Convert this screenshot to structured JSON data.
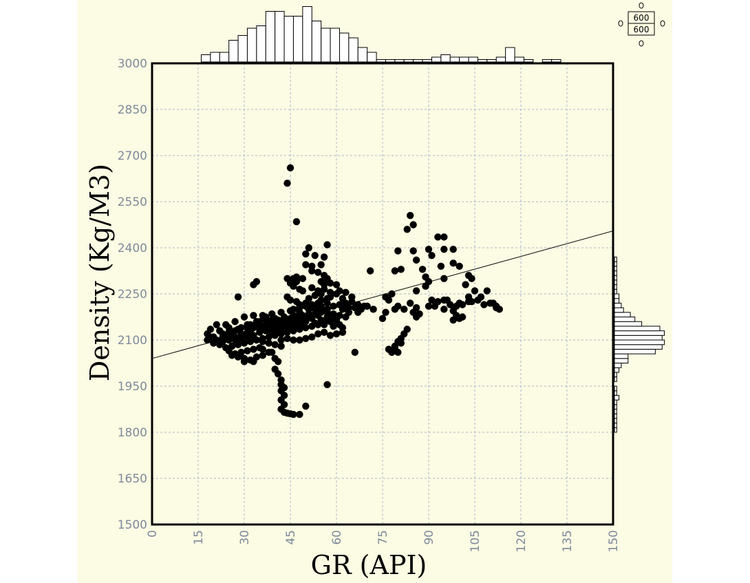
{
  "chart_data": {
    "type": "scatter",
    "title": "",
    "xlabel": "GR (API)",
    "ylabel": "Density (Kg/M3)",
    "xlim": [
      0,
      150
    ],
    "ylim": [
      1500,
      3000
    ],
    "x_ticks": [
      0,
      15,
      30,
      45,
      60,
      75,
      90,
      105,
      120,
      135,
      150
    ],
    "y_ticks": [
      1500,
      1650,
      1800,
      1950,
      2100,
      2250,
      2400,
      2550,
      2700,
      2850,
      3000
    ],
    "grid": true,
    "regression_line": {
      "x": [
        0,
        150
      ],
      "y": [
        2040,
        2455
      ]
    },
    "x_histogram": {
      "bins_start": 16,
      "bin_width": 3,
      "counts": [
        3,
        4,
        4,
        9,
        11,
        14,
        15,
        21,
        21,
        19,
        19,
        23,
        17,
        14,
        14,
        12,
        10,
        6,
        4,
        1,
        1,
        1,
        1,
        1,
        1,
        2,
        3,
        2,
        2,
        2,
        1,
        1,
        2,
        6,
        2,
        1,
        0,
        1,
        1
      ]
    },
    "y_histogram": {
      "bins_start": 1800,
      "bin_width": 15,
      "counts": [
        1,
        1,
        1,
        1,
        1,
        1,
        1,
        2,
        1,
        1,
        0,
        1,
        1,
        2,
        3,
        6,
        6,
        18,
        21,
        22,
        21,
        22,
        20,
        12,
        9,
        7,
        4,
        3,
        2,
        2,
        1,
        1,
        1,
        1,
        1,
        1,
        1,
        1
      ]
    },
    "scale_box": {
      "top": "600",
      "bottom": "600"
    },
    "points": [
      [
        45,
        2660
      ],
      [
        44,
        2610
      ],
      [
        47,
        2485
      ],
      [
        84,
        2505
      ],
      [
        85,
        2475
      ],
      [
        83,
        2460
      ],
      [
        93,
        2435
      ],
      [
        95,
        2435
      ],
      [
        95,
        2395
      ],
      [
        90,
        2395
      ],
      [
        91,
        2375
      ],
      [
        98,
        2395
      ],
      [
        80,
        2390
      ],
      [
        85,
        2390
      ],
      [
        86,
        2360
      ],
      [
        94,
        2340
      ],
      [
        100,
        2340
      ],
      [
        98,
        2350
      ],
      [
        57,
        2410
      ],
      [
        51,
        2400
      ],
      [
        50,
        2380
      ],
      [
        53,
        2375
      ],
      [
        56,
        2370
      ],
      [
        55,
        2345
      ],
      [
        52,
        2340
      ],
      [
        50,
        2345
      ],
      [
        52,
        2325
      ],
      [
        54,
        2320
      ],
      [
        56,
        2310
      ],
      [
        57,
        2300
      ],
      [
        55,
        2290
      ],
      [
        58,
        2285
      ],
      [
        60,
        2280
      ],
      [
        56,
        2280
      ],
      [
        46,
        2300
      ],
      [
        44,
        2300
      ],
      [
        47,
        2305
      ],
      [
        49,
        2300
      ],
      [
        47,
        2290
      ],
      [
        45,
        2285
      ],
      [
        46,
        2275
      ],
      [
        48,
        2265
      ],
      [
        33,
        2280
      ],
      [
        34,
        2290
      ],
      [
        28,
        2240
      ],
      [
        71,
        2325
      ],
      [
        79,
        2325
      ],
      [
        81,
        2330
      ],
      [
        88,
        2330
      ],
      [
        89,
        2305
      ],
      [
        90,
        2290
      ],
      [
        95,
        2300
      ],
      [
        103,
        2310
      ],
      [
        104,
        2300
      ],
      [
        102,
        2280
      ],
      [
        105,
        2260
      ],
      [
        103,
        2240
      ],
      [
        104,
        2225
      ],
      [
        101,
        2215
      ],
      [
        99,
        2210
      ],
      [
        100,
        2220
      ],
      [
        96,
        2230
      ],
      [
        97,
        2215
      ],
      [
        95,
        2200
      ],
      [
        98,
        2195
      ],
      [
        99,
        2180
      ],
      [
        100,
        2170
      ],
      [
        98,
        2165
      ],
      [
        101,
        2175
      ],
      [
        103,
        2225
      ],
      [
        106,
        2230
      ],
      [
        107,
        2240
      ],
      [
        109,
        2260
      ],
      [
        110,
        2220
      ],
      [
        111,
        2220
      ],
      [
        108,
        2215
      ],
      [
        112,
        2210
      ],
      [
        112,
        2205
      ],
      [
        113,
        2200
      ],
      [
        86,
        2260
      ],
      [
        89,
        2275
      ],
      [
        91,
        2230
      ],
      [
        93,
        2225
      ],
      [
        95,
        2230
      ],
      [
        92,
        2210
      ],
      [
        90,
        2210
      ],
      [
        86,
        2205
      ],
      [
        85,
        2190
      ],
      [
        87,
        2185
      ],
      [
        86,
        2175
      ],
      [
        84,
        2220
      ],
      [
        82,
        2200
      ],
      [
        80,
        2210
      ],
      [
        78,
        2250
      ],
      [
        76,
        2240
      ],
      [
        77,
        2230
      ],
      [
        79,
        2200
      ],
      [
        76,
        2190
      ],
      [
        75,
        2170
      ],
      [
        72,
        2200
      ],
      [
        70,
        2210
      ],
      [
        68,
        2200
      ],
      [
        66,
        2205
      ],
      [
        67,
        2190
      ],
      [
        64,
        2190
      ],
      [
        65,
        2240
      ],
      [
        63,
        2255
      ],
      [
        61,
        2260
      ],
      [
        58,
        2255
      ],
      [
        60,
        2250
      ],
      [
        62,
        2235
      ],
      [
        57,
        2235
      ],
      [
        55,
        2230
      ],
      [
        54,
        2220
      ],
      [
        52,
        2215
      ],
      [
        50,
        2210
      ],
      [
        48,
        2205
      ],
      [
        46,
        2200
      ],
      [
        53,
        2200
      ],
      [
        55,
        2195
      ],
      [
        57,
        2190
      ],
      [
        59,
        2185
      ],
      [
        61,
        2180
      ],
      [
        63,
        2175
      ],
      [
        60,
        2170
      ],
      [
        58,
        2165
      ],
      [
        56,
        2160
      ],
      [
        54,
        2150
      ],
      [
        52,
        2145
      ],
      [
        50,
        2140
      ],
      [
        48,
        2135
      ],
      [
        46,
        2130
      ],
      [
        44,
        2125
      ],
      [
        42,
        2120
      ],
      [
        40,
        2115
      ],
      [
        38,
        2110
      ],
      [
        36,
        2105
      ],
      [
        34,
        2100
      ],
      [
        32,
        2095
      ],
      [
        30,
        2090
      ],
      [
        28,
        2085
      ],
      [
        26,
        2080
      ],
      [
        24,
        2075
      ],
      [
        22,
        2085
      ],
      [
        20,
        2090
      ],
      [
        18,
        2100
      ],
      [
        18,
        2120
      ],
      [
        19,
        2135
      ],
      [
        20,
        2110
      ],
      [
        21,
        2150
      ],
      [
        22,
        2130
      ],
      [
        23,
        2120
      ],
      [
        24,
        2150
      ],
      [
        25,
        2140
      ],
      [
        26,
        2115
      ],
      [
        27,
        2160
      ],
      [
        28,
        2135
      ],
      [
        29,
        2120
      ],
      [
        30,
        2175
      ],
      [
        31,
        2150
      ],
      [
        32,
        2130
      ],
      [
        33,
        2180
      ],
      [
        34,
        2160
      ],
      [
        35,
        2140
      ],
      [
        36,
        2180
      ],
      [
        37,
        2165
      ],
      [
        38,
        2150
      ],
      [
        39,
        2185
      ],
      [
        40,
        2170
      ],
      [
        41,
        2155
      ],
      [
        42,
        2190
      ],
      [
        43,
        2175
      ],
      [
        44,
        2160
      ],
      [
        45,
        2195
      ],
      [
        46,
        2180
      ],
      [
        47,
        2165
      ],
      [
        48,
        2190
      ],
      [
        49,
        2175
      ],
      [
        50,
        2160
      ],
      [
        51,
        2185
      ],
      [
        52,
        2170
      ],
      [
        53,
        2155
      ],
      [
        54,
        2180
      ],
      [
        55,
        2165
      ],
      [
        56,
        2150
      ],
      [
        57,
        2175
      ],
      [
        58,
        2160
      ],
      [
        59,
        2145
      ],
      [
        60,
        2165
      ],
      [
        61,
        2150
      ],
      [
        62,
        2140
      ],
      [
        38,
        2135
      ],
      [
        40,
        2140
      ],
      [
        42,
        2145
      ],
      [
        44,
        2150
      ],
      [
        46,
        2155
      ],
      [
        48,
        2160
      ],
      [
        35,
        2125
      ],
      [
        37,
        2130
      ],
      [
        39,
        2125
      ],
      [
        41,
        2130
      ],
      [
        43,
        2135
      ],
      [
        45,
        2140
      ],
      [
        47,
        2145
      ],
      [
        49,
        2150
      ],
      [
        33,
        2115
      ],
      [
        31,
        2110
      ],
      [
        29,
        2105
      ],
      [
        27,
        2100
      ],
      [
        25,
        2100
      ],
      [
        23,
        2095
      ],
      [
        36,
        2095
      ],
      [
        38,
        2090
      ],
      [
        40,
        2085
      ],
      [
        42,
        2080
      ],
      [
        35,
        2075
      ],
      [
        33,
        2070
      ],
      [
        31,
        2065
      ],
      [
        29,
        2060
      ],
      [
        27,
        2055
      ],
      [
        25,
        2065
      ],
      [
        26,
        2050
      ],
      [
        28,
        2045
      ],
      [
        30,
        2040
      ],
      [
        32,
        2035
      ],
      [
        34,
        2045
      ],
      [
        36,
        2050
      ],
      [
        38,
        2060
      ],
      [
        30,
        2030
      ],
      [
        33,
        2030
      ],
      [
        36,
        2070
      ],
      [
        39,
        2060
      ],
      [
        40,
        2040
      ],
      [
        41,
        2030
      ],
      [
        40,
        2005
      ],
      [
        41,
        1990
      ],
      [
        42,
        1970
      ],
      [
        42,
        1955
      ],
      [
        43,
        1945
      ],
      [
        42,
        1935
      ],
      [
        43,
        1920
      ],
      [
        42,
        1905
      ],
      [
        43,
        1890
      ],
      [
        42,
        1875
      ],
      [
        43,
        1865
      ],
      [
        44,
        1862
      ],
      [
        45,
        1860
      ],
      [
        46,
        1858
      ],
      [
        48,
        1858
      ],
      [
        50,
        1885
      ],
      [
        57,
        1955
      ],
      [
        66,
        2060
      ],
      [
        62,
        2125
      ],
      [
        60,
        2120
      ],
      [
        58,
        2115
      ],
      [
        56,
        2125
      ],
      [
        54,
        2120
      ],
      [
        52,
        2110
      ],
      [
        50,
        2105
      ],
      [
        48,
        2100
      ],
      [
        46,
        2100
      ],
      [
        44,
        2105
      ],
      [
        42,
        2100
      ],
      [
        77,
        2070
      ],
      [
        78,
        2060
      ],
      [
        80,
        2060
      ],
      [
        79,
        2080
      ],
      [
        80,
        2095
      ],
      [
        81,
        2105
      ],
      [
        82,
        2120
      ],
      [
        83,
        2135
      ],
      [
        79,
        2075
      ],
      [
        81,
        2090
      ],
      [
        36,
        2145
      ],
      [
        38,
        2155
      ],
      [
        39,
        2165
      ],
      [
        37,
        2175
      ],
      [
        35,
        2160
      ],
      [
        34,
        2150
      ],
      [
        32,
        2150
      ],
      [
        31,
        2140
      ],
      [
        29,
        2140
      ],
      [
        27,
        2130
      ],
      [
        25,
        2125
      ],
      [
        23,
        2110
      ],
      [
        21,
        2100
      ],
      [
        19,
        2110
      ],
      [
        45,
        2170
      ],
      [
        47,
        2175
      ],
      [
        49,
        2180
      ],
      [
        51,
        2175
      ],
      [
        53,
        2185
      ],
      [
        55,
        2190
      ],
      [
        57,
        2200
      ],
      [
        59,
        2210
      ],
      [
        61,
        2215
      ],
      [
        63,
        2220
      ],
      [
        65,
        2225
      ],
      [
        67,
        2215
      ],
      [
        69,
        2210
      ],
      [
        62,
        2200
      ],
      [
        64,
        2205
      ],
      [
        43,
        2160
      ],
      [
        41,
        2165
      ],
      [
        39,
        2150
      ],
      [
        37,
        2145
      ],
      [
        35,
        2135
      ],
      [
        33,
        2140
      ],
      [
        31,
        2125
      ],
      [
        29,
        2115
      ],
      [
        27,
        2110
      ],
      [
        25,
        2110
      ],
      [
        44,
        2240
      ],
      [
        45,
        2230
      ],
      [
        47,
        2225
      ],
      [
        48,
        2215
      ],
      [
        50,
        2220
      ],
      [
        51,
        2235
      ],
      [
        53,
        2245
      ],
      [
        55,
        2250
      ],
      [
        49,
        2260
      ],
      [
        52,
        2270
      ],
      [
        54,
        2260
      ],
      [
        56,
        2265
      ],
      [
        58,
        2240
      ],
      [
        57,
        2220
      ],
      [
        55,
        2210
      ],
      [
        53,
        2210
      ],
      [
        51,
        2200
      ]
    ]
  }
}
